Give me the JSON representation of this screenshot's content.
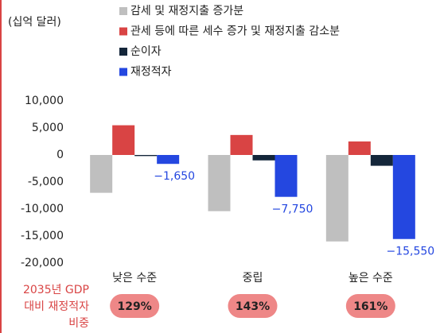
{
  "chart_data": {
    "type": "bar",
    "unit_label": "(십억 달러)",
    "categories": [
      "낮은 수준",
      "중립",
      "높은 수준"
    ],
    "series": [
      {
        "name": "감세 및 재정지출 증가분",
        "color": "#bfbfbf",
        "values": [
          -7000,
          -10400,
          -16000
        ]
      },
      {
        "name": "관세 등에 따른 세수 증가 및 재정지출 감소분",
        "color": "#d94444",
        "values": [
          5500,
          3700,
          2500
        ]
      },
      {
        "name": "순이자",
        "color": "#14263a",
        "values": [
          -200,
          -1000,
          -2000
        ]
      },
      {
        "name": "재정적자",
        "color": "#2447e0",
        "values": [
          -1650,
          -7750,
          -15550
        ],
        "value_labels": [
          "−1,650",
          "−7,750",
          "−15,550"
        ]
      }
    ],
    "ylim": [
      -20000,
      10000
    ],
    "yticks": [
      {
        "value": 10000,
        "label": "10,000"
      },
      {
        "value": 5000,
        "label": "5,000"
      },
      0,
      {
        "value": -5000,
        "label": "-5,000"
      },
      {
        "value": -10000,
        "label": "-10,000"
      },
      {
        "value": -15000,
        "label": "-15,000"
      },
      {
        "value": -20000,
        "label": "-20,000"
      }
    ],
    "grid": false,
    "annotation_lines": [
      "2035년 GDP",
      "대비 재정적자",
      "비중"
    ],
    "annotation_values": [
      "129%",
      "143%",
      "161%"
    ]
  }
}
